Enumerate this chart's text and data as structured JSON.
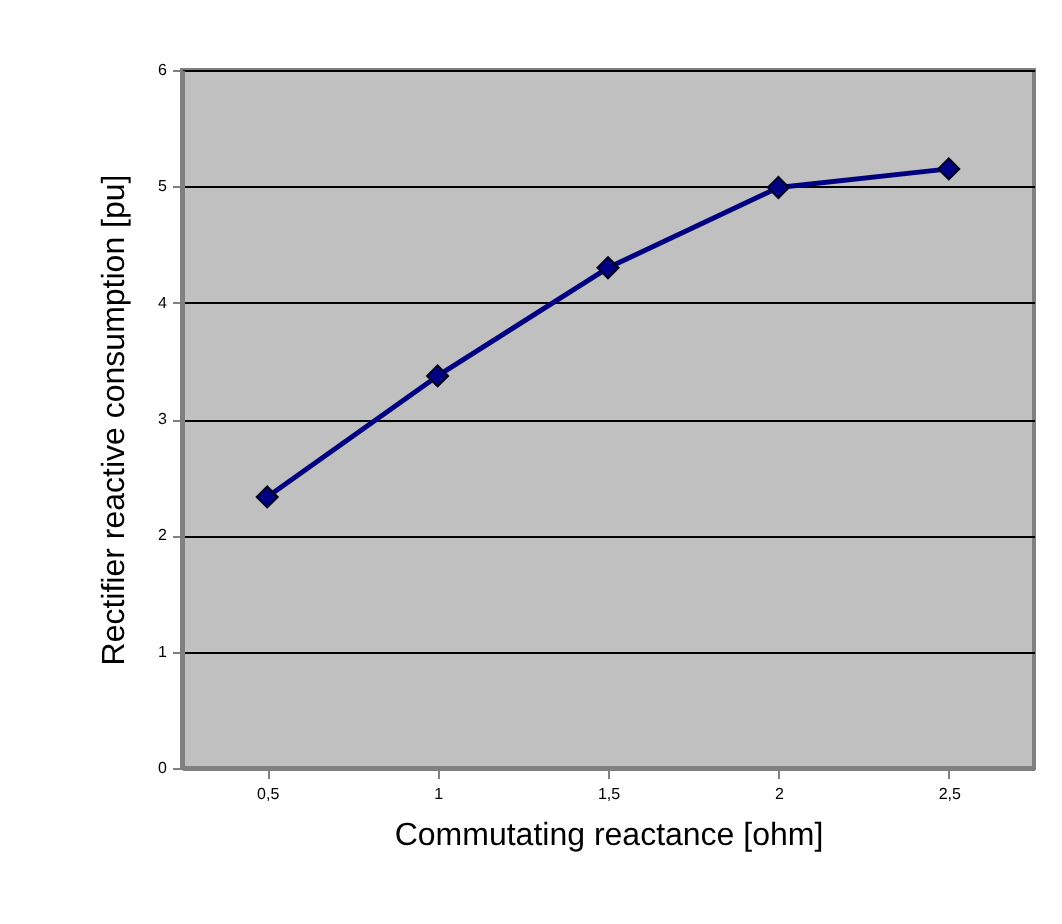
{
  "chart_data": {
    "type": "line",
    "xlabel": "Commutating reactance [ohm]",
    "ylabel": "Rectifier reactive consumption [pu]",
    "categories": [
      "0,5",
      "1",
      "1,5",
      "2",
      "2,5"
    ],
    "series": [
      {
        "color": "#000080",
        "values": [
          2.33,
          3.37,
          4.3,
          4.99,
          5.15
        ]
      }
    ],
    "ylim": [
      0,
      6
    ],
    "yticks": [
      0,
      1,
      2,
      3,
      4,
      5,
      6
    ],
    "grid": "y",
    "marker": "diamond",
    "line_style": "solid"
  }
}
